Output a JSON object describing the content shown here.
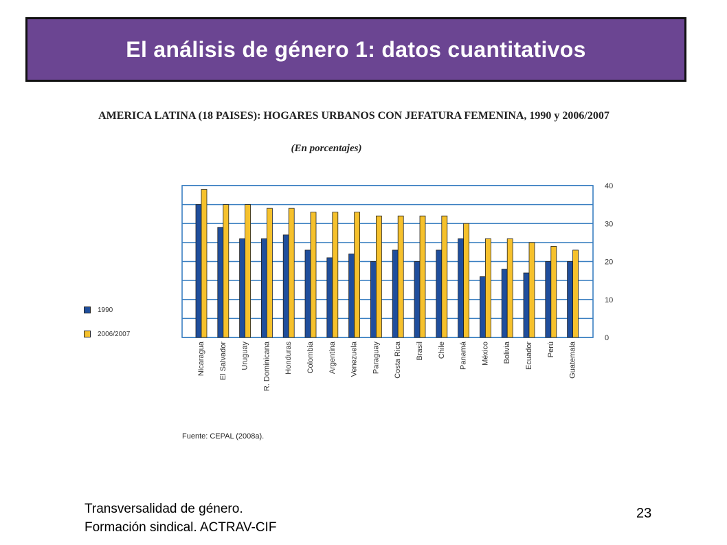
{
  "slide": {
    "title": "El análisis de género 1: datos cuantitativos",
    "footer_line1": "Transversalidad de género.",
    "footer_line2": "Formación sindical. ACTRAV-CIF",
    "page_number": "23",
    "title_bg_color": "#6b4592"
  },
  "chart_data": {
    "type": "bar",
    "title": "AMERICA LATINA (18 PAISES): HOGARES URBANOS CON JEFATURA FEMENINA, 1990 y 2006/2007",
    "subtitle": "(En porcentajes)",
    "source": "Fuente: CEPAL (2008a).",
    "categories": [
      "Nicaragua",
      "El Salvador",
      "Uruguay",
      "R. Dominicana",
      "Honduras",
      "Colombia",
      "Argentina",
      "Venezuela",
      "Paraguay",
      "Costa Rica",
      "Brasil",
      "Chile",
      "Panamá",
      "México",
      "Bolivia",
      "Ecuador",
      "Perú",
      "Guatemala"
    ],
    "series": [
      {
        "name": "1990",
        "color": "#1f4e9c",
        "values": [
          35,
          29,
          26,
          26,
          27,
          23,
          21,
          22,
          20,
          23,
          20,
          23,
          26,
          16,
          18,
          17,
          20,
          20
        ]
      },
      {
        "name": "2006/2007",
        "color": "#f6c12c",
        "values": [
          39,
          35,
          35,
          34,
          34,
          33,
          33,
          33,
          32,
          32,
          32,
          32,
          30,
          26,
          26,
          25,
          24,
          23
        ]
      }
    ],
    "yticks": [
      "0",
      "10",
      "20",
      "30",
      "40"
    ],
    "ylim": [
      0,
      40
    ],
    "grid": true,
    "grid_color": "#3a7fc1",
    "legend_position": "left"
  }
}
